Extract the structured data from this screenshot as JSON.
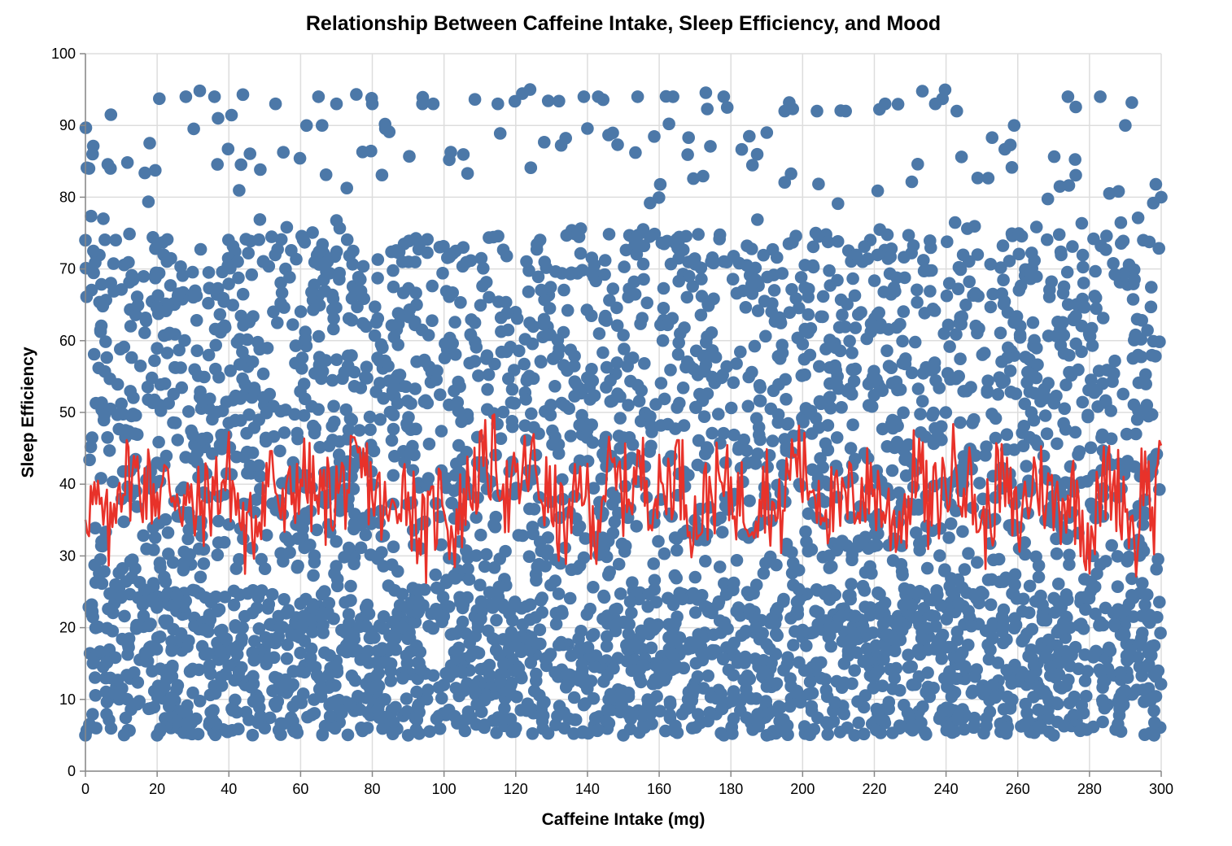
{
  "chart_data": {
    "type": "scatter",
    "title": "Relationship Between Caffeine Intake, Sleep Efficiency, and Mood",
    "xlabel": "Caffeine Intake (mg)",
    "ylabel": "Sleep Efficiency",
    "xlim": [
      0,
      300
    ],
    "ylim": [
      0,
      100
    ],
    "x_ticks": [
      0,
      20,
      40,
      60,
      80,
      100,
      120,
      140,
      160,
      180,
      200,
      220,
      240,
      260,
      280,
      300
    ],
    "y_ticks": [
      0,
      10,
      20,
      30,
      40,
      50,
      60,
      70,
      80,
      90,
      100
    ],
    "grid": true,
    "legend": "none",
    "colors": {
      "points": "#4c78a8",
      "line": "#e8322a"
    },
    "series": [
      {
        "type": "scatter",
        "point_count": 4000,
        "x_range": [
          0,
          300
        ],
        "y_range": [
          5,
          95
        ],
        "sample_points": [
          [
            0,
            74
          ],
          [
            1,
            84
          ],
          [
            2,
            86
          ],
          [
            5,
            77
          ],
          [
            7,
            84
          ],
          [
            28,
            94
          ],
          [
            36,
            94
          ],
          [
            37,
            91
          ],
          [
            53,
            93
          ],
          [
            65,
            94
          ],
          [
            66,
            90
          ],
          [
            70,
            93
          ],
          [
            80,
            93
          ],
          [
            94,
            93
          ],
          [
            97,
            93
          ],
          [
            115,
            93
          ],
          [
            124,
            95
          ],
          [
            139,
            94
          ],
          [
            143,
            94
          ],
          [
            154,
            94
          ],
          [
            178,
            94
          ],
          [
            190,
            89
          ],
          [
            195,
            92
          ],
          [
            204,
            92
          ],
          [
            212,
            92
          ],
          [
            223,
            93
          ],
          [
            237,
            93
          ],
          [
            243,
            92
          ],
          [
            259,
            90
          ],
          [
            274,
            94
          ],
          [
            283,
            94
          ],
          [
            290,
            90
          ],
          [
            300,
            80
          ],
          [
            0,
            5
          ],
          [
            3,
            6
          ],
          [
            20,
            5
          ],
          [
            50,
            6
          ],
          [
            90,
            5
          ],
          [
            120,
            6
          ],
          [
            150,
            5
          ],
          [
            190,
            5
          ],
          [
            230,
            6
          ],
          [
            270,
            5
          ],
          [
            298,
            5
          ]
        ]
      },
      {
        "type": "line",
        "mean_level": 38,
        "range": [
          24,
          53
        ],
        "x_start": 0,
        "x_end": 300,
        "sample_points": [
          [
            0,
            38
          ],
          [
            2,
            36
          ],
          [
            4,
            33
          ],
          [
            7,
            26
          ],
          [
            9,
            45
          ],
          [
            14,
            44
          ],
          [
            20,
            40
          ],
          [
            25,
            42
          ],
          [
            30,
            33
          ],
          [
            40,
            45
          ],
          [
            45,
            25
          ],
          [
            52,
            48
          ],
          [
            55,
            31
          ],
          [
            60,
            46
          ],
          [
            65,
            36
          ],
          [
            70,
            40
          ],
          [
            78,
            45
          ],
          [
            85,
            30
          ],
          [
            88,
            44
          ],
          [
            95,
            26
          ],
          [
            100,
            42
          ],
          [
            102,
            27
          ],
          [
            108,
            44
          ],
          [
            115,
            50
          ],
          [
            118,
            36
          ],
          [
            124,
            48
          ],
          [
            130,
            36
          ],
          [
            135,
            28
          ],
          [
            139,
            46
          ],
          [
            141,
            26
          ],
          [
            145,
            44
          ],
          [
            150,
            40
          ],
          [
            155,
            45
          ],
          [
            160,
            38
          ],
          [
            165,
            48
          ],
          [
            170,
            31
          ],
          [
            175,
            41
          ],
          [
            180,
            40
          ],
          [
            185,
            36
          ],
          [
            190,
            42
          ],
          [
            193,
            29
          ],
          [
            198,
            53
          ],
          [
            200,
            45
          ],
          [
            205,
            40
          ],
          [
            210,
            33
          ],
          [
            215,
            40
          ],
          [
            220,
            41
          ],
          [
            225,
            31
          ],
          [
            230,
            37
          ],
          [
            232,
            52
          ],
          [
            235,
            33
          ],
          [
            240,
            42
          ],
          [
            243,
            49
          ],
          [
            248,
            38
          ],
          [
            250,
            27
          ],
          [
            255,
            44
          ],
          [
            260,
            30
          ],
          [
            265,
            45
          ],
          [
            270,
            36
          ],
          [
            275,
            40
          ],
          [
            280,
            28
          ],
          [
            285,
            44
          ],
          [
            290,
            38
          ],
          [
            293,
            25
          ],
          [
            295,
            48
          ],
          [
            298,
            32
          ],
          [
            300,
            45
          ]
        ]
      }
    ]
  }
}
